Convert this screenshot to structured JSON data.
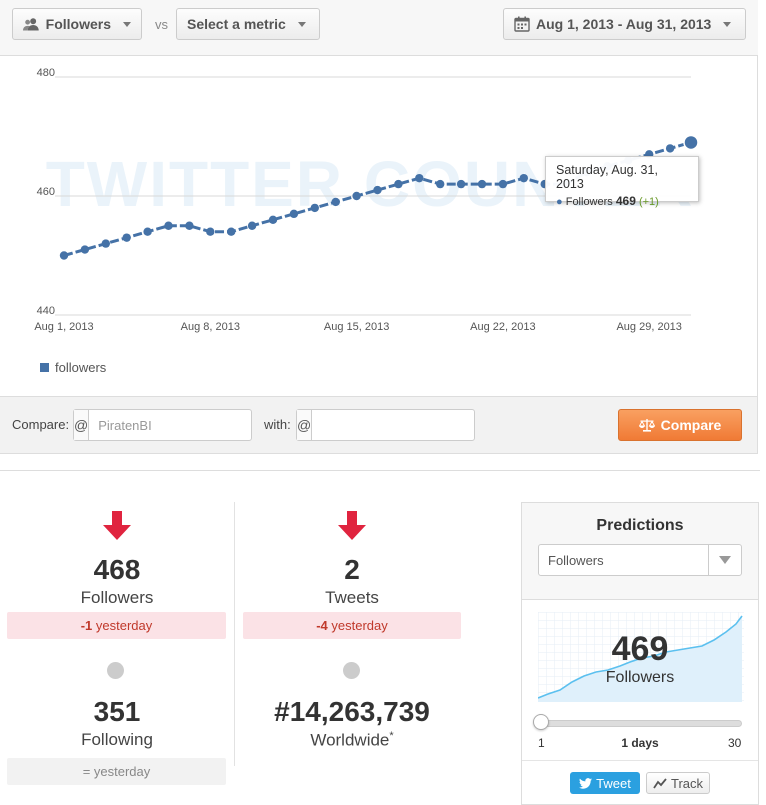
{
  "toolbar": {
    "metric_label": "Followers",
    "vs_label": "vs",
    "compare_metric_label": "Select a metric",
    "date_range_label": "Aug 1, 2013 - Aug 31, 2013"
  },
  "chart_data": {
    "type": "line",
    "title": "",
    "xlabel": "",
    "ylabel": "",
    "ylim": [
      440,
      480
    ],
    "y_ticks": [
      480,
      460,
      440
    ],
    "x_tick_labels": [
      "Aug 1, 2013",
      "Aug 8, 2013",
      "Aug 15, 2013",
      "Aug 22, 2013",
      "Aug 29, 2013"
    ],
    "x_tick_days": [
      1,
      8,
      15,
      22,
      29
    ],
    "legend_position": "bottom-left",
    "grid": true,
    "watermark": "TWITTER COUNTER",
    "series": [
      {
        "name": "followers",
        "color": "#4572a7",
        "x": [
          1,
          2,
          3,
          4,
          5,
          6,
          7,
          8,
          9,
          10,
          11,
          12,
          13,
          14,
          15,
          16,
          17,
          18,
          19,
          20,
          21,
          22,
          23,
          24,
          25,
          26,
          27,
          28,
          29,
          30,
          31
        ],
        "values": [
          450,
          451,
          452,
          453,
          454,
          455,
          455,
          454,
          454,
          455,
          456,
          457,
          458,
          459,
          460,
          461,
          462,
          463,
          462,
          462,
          462,
          462,
          463,
          462,
          462,
          464,
          465,
          466,
          467,
          468,
          469
        ]
      }
    ]
  },
  "tooltip": {
    "date": "Saturday, Aug. 31, 2013",
    "series_label": "Followers",
    "value": "469",
    "delta": "(+1)"
  },
  "compare": {
    "compare_label": "Compare:",
    "with_label": "with:",
    "at_symbol": "@",
    "field1_value": "",
    "field1_placeholder": "PiratenBI",
    "field2_value": "",
    "field2_placeholder": "",
    "button_label": "Compare"
  },
  "stats": {
    "followers": {
      "value": "468",
      "label": "Followers",
      "delta": "-1",
      "delta_suffix": " yesterday",
      "trend": "down"
    },
    "tweets": {
      "value": "2",
      "label": "Tweets",
      "delta": "-4",
      "delta_suffix": " yesterday",
      "trend": "down"
    },
    "following": {
      "value": "351",
      "label": "Following",
      "delta": "= yesterday",
      "trend": "flat"
    },
    "worldwide": {
      "value": "#14,263,739",
      "label": "Worldwide",
      "footnote": "*",
      "trend": "flat"
    }
  },
  "predictions": {
    "title": "Predictions",
    "metric_selected": "Followers",
    "value": "469",
    "label": "Followers",
    "slider_min": "1",
    "slider_max": "30",
    "slider_current": "1 days",
    "slider_value": 1,
    "tweet_label": "Tweet",
    "track_label": "Track"
  },
  "colors": {
    "series": "#4572a7",
    "accent_orange": "#f07a35",
    "down_arrow": "#e0243f",
    "tweet_blue": "#2ba0e0"
  }
}
